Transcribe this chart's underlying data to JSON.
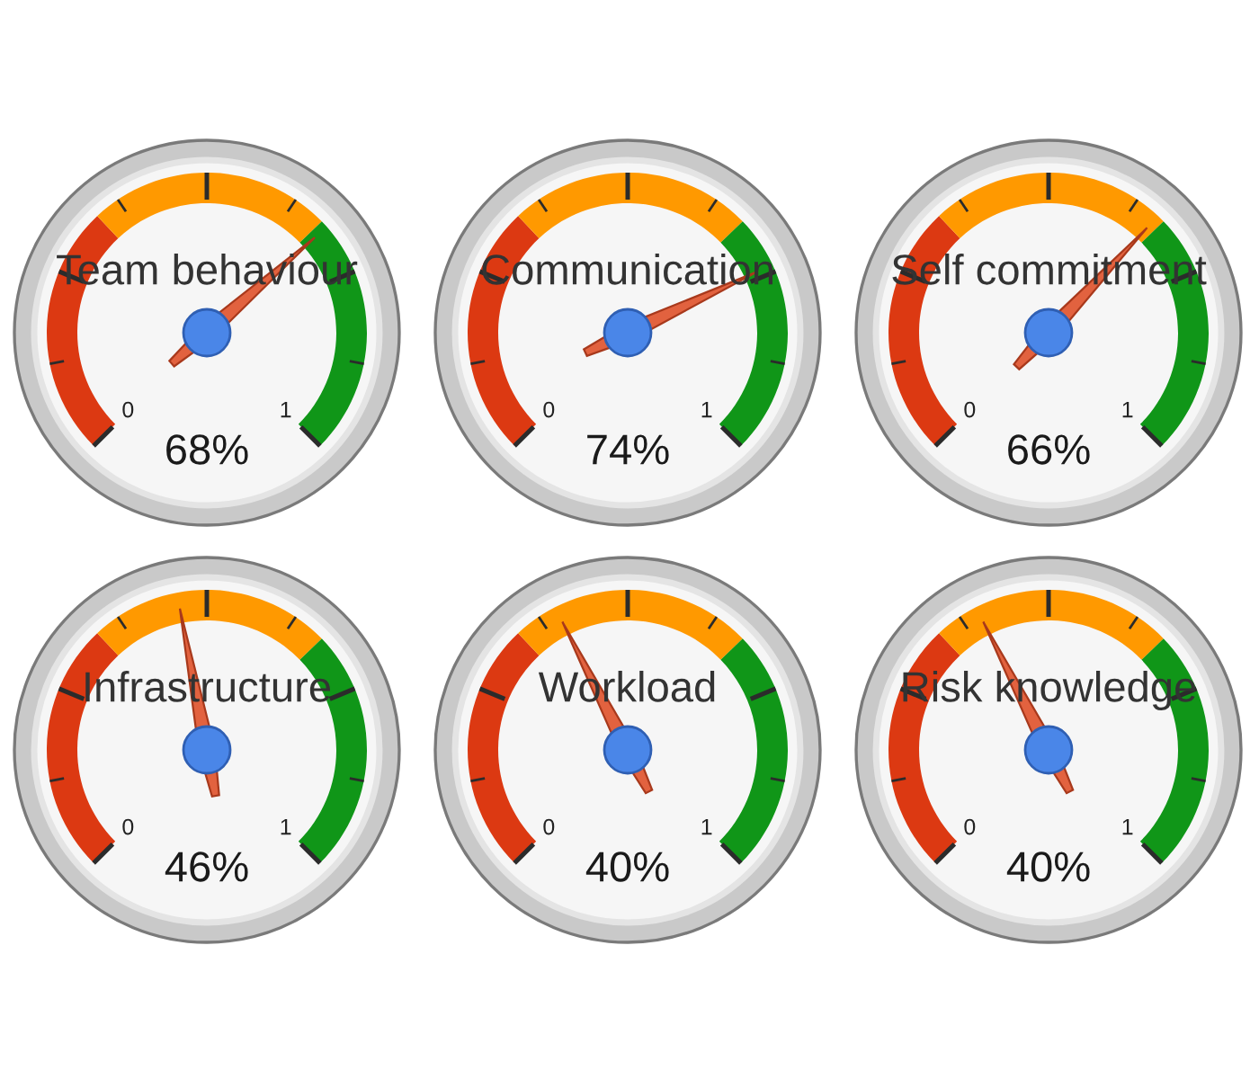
{
  "chart_data": [
    {
      "type": "donut",
      "title": "Team behaviour",
      "categories": [
        null,
        null,
        null
      ],
      "values": [
        34,
        33,
        33
      ],
      "colors": [
        "#dc3912",
        "#ff9900",
        "#109618"
      ],
      "annotations": [
        "0",
        "1",
        "68%"
      ]
    },
    {
      "type": "donut",
      "title": "Communication",
      "categories": [
        null,
        null,
        null
      ],
      "values": [
        34,
        33,
        33
      ],
      "colors": [
        "#dc3912",
        "#ff9900",
        "#109618"
      ],
      "annotations": [
        "0",
        "1",
        "74%"
      ]
    },
    {
      "type": "donut",
      "title": "Self commitment",
      "categories": [
        null,
        null,
        null
      ],
      "values": [
        34,
        33,
        33
      ],
      "colors": [
        "#dc3912",
        "#ff9900",
        "#109618"
      ],
      "annotations": [
        "0",
        "1",
        "66%"
      ]
    },
    {
      "type": "donut",
      "title": "Infrastructure",
      "categories": [
        null,
        null,
        null
      ],
      "values": [
        34,
        33,
        33
      ],
      "colors": [
        "#dc3912",
        "#ff9900",
        "#109618"
      ],
      "annotations": [
        "0",
        "1",
        "46%"
      ]
    },
    {
      "type": "donut",
      "title": "Workload",
      "categories": [
        null,
        null,
        null
      ],
      "values": [
        34,
        33,
        33
      ],
      "colors": [
        "#dc3912",
        "#ff9900",
        "#109618"
      ],
      "annotations": [
        "0",
        "1",
        "40%"
      ]
    },
    {
      "type": "donut",
      "title": "Risk knowledge",
      "categories": [
        null,
        null,
        null
      ],
      "values": [
        34,
        33,
        33
      ],
      "colors": [
        "#dc3912",
        "#ff9900",
        "#109618"
      ],
      "annotations": [
        "0",
        "1",
        "40%"
      ]
    }
  ]
}
